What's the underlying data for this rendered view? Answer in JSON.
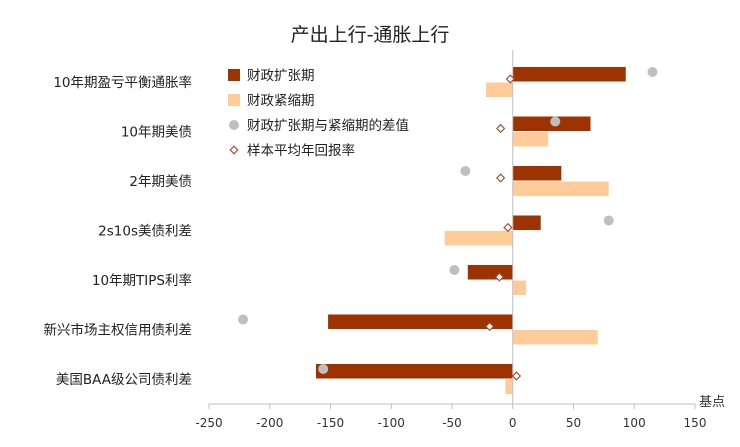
{
  "chart_data": {
    "type": "bar",
    "orientation": "horizontal",
    "title": "产出上行-通胀上行",
    "unit_label": "基点",
    "categories": [
      "10年期盈亏平衡通胀率",
      "10年期美债",
      "2年期美债",
      "2s10s美债利差",
      "10年期TIPS利率",
      "新兴市场主权信用债利差",
      "美国BAA级公司债利差"
    ],
    "series": [
      {
        "name": "财政扩张期",
        "type": "bar",
        "color": "#9C3300",
        "values": [
          93,
          64,
          40,
          23,
          -37,
          -152,
          -162
        ]
      },
      {
        "name": "财政紧缩期",
        "type": "bar",
        "color": "#FFCC99",
        "values": [
          -22,
          29,
          79,
          -56,
          11,
          70,
          -6
        ]
      },
      {
        "name": "财政扩张期与紧缩期的差值",
        "type": "scatter",
        "marker": "circle",
        "color": "#BFBFBF",
        "values": [
          115,
          35,
          -39,
          79,
          -48,
          -222,
          -156
        ]
      },
      {
        "name": "样本平均年回报率",
        "type": "scatter",
        "marker": "diamond",
        "color": "#A0522D",
        "values": [
          -2,
          -10,
          -10,
          -4,
          -11,
          -19,
          3
        ]
      }
    ],
    "x_ticks": [
      -250,
      -200,
      -150,
      -100,
      -50,
      0,
      50,
      100,
      150
    ],
    "xlim": [
      -250,
      150
    ],
    "grid": false,
    "legend_position": "top-left-inside"
  }
}
